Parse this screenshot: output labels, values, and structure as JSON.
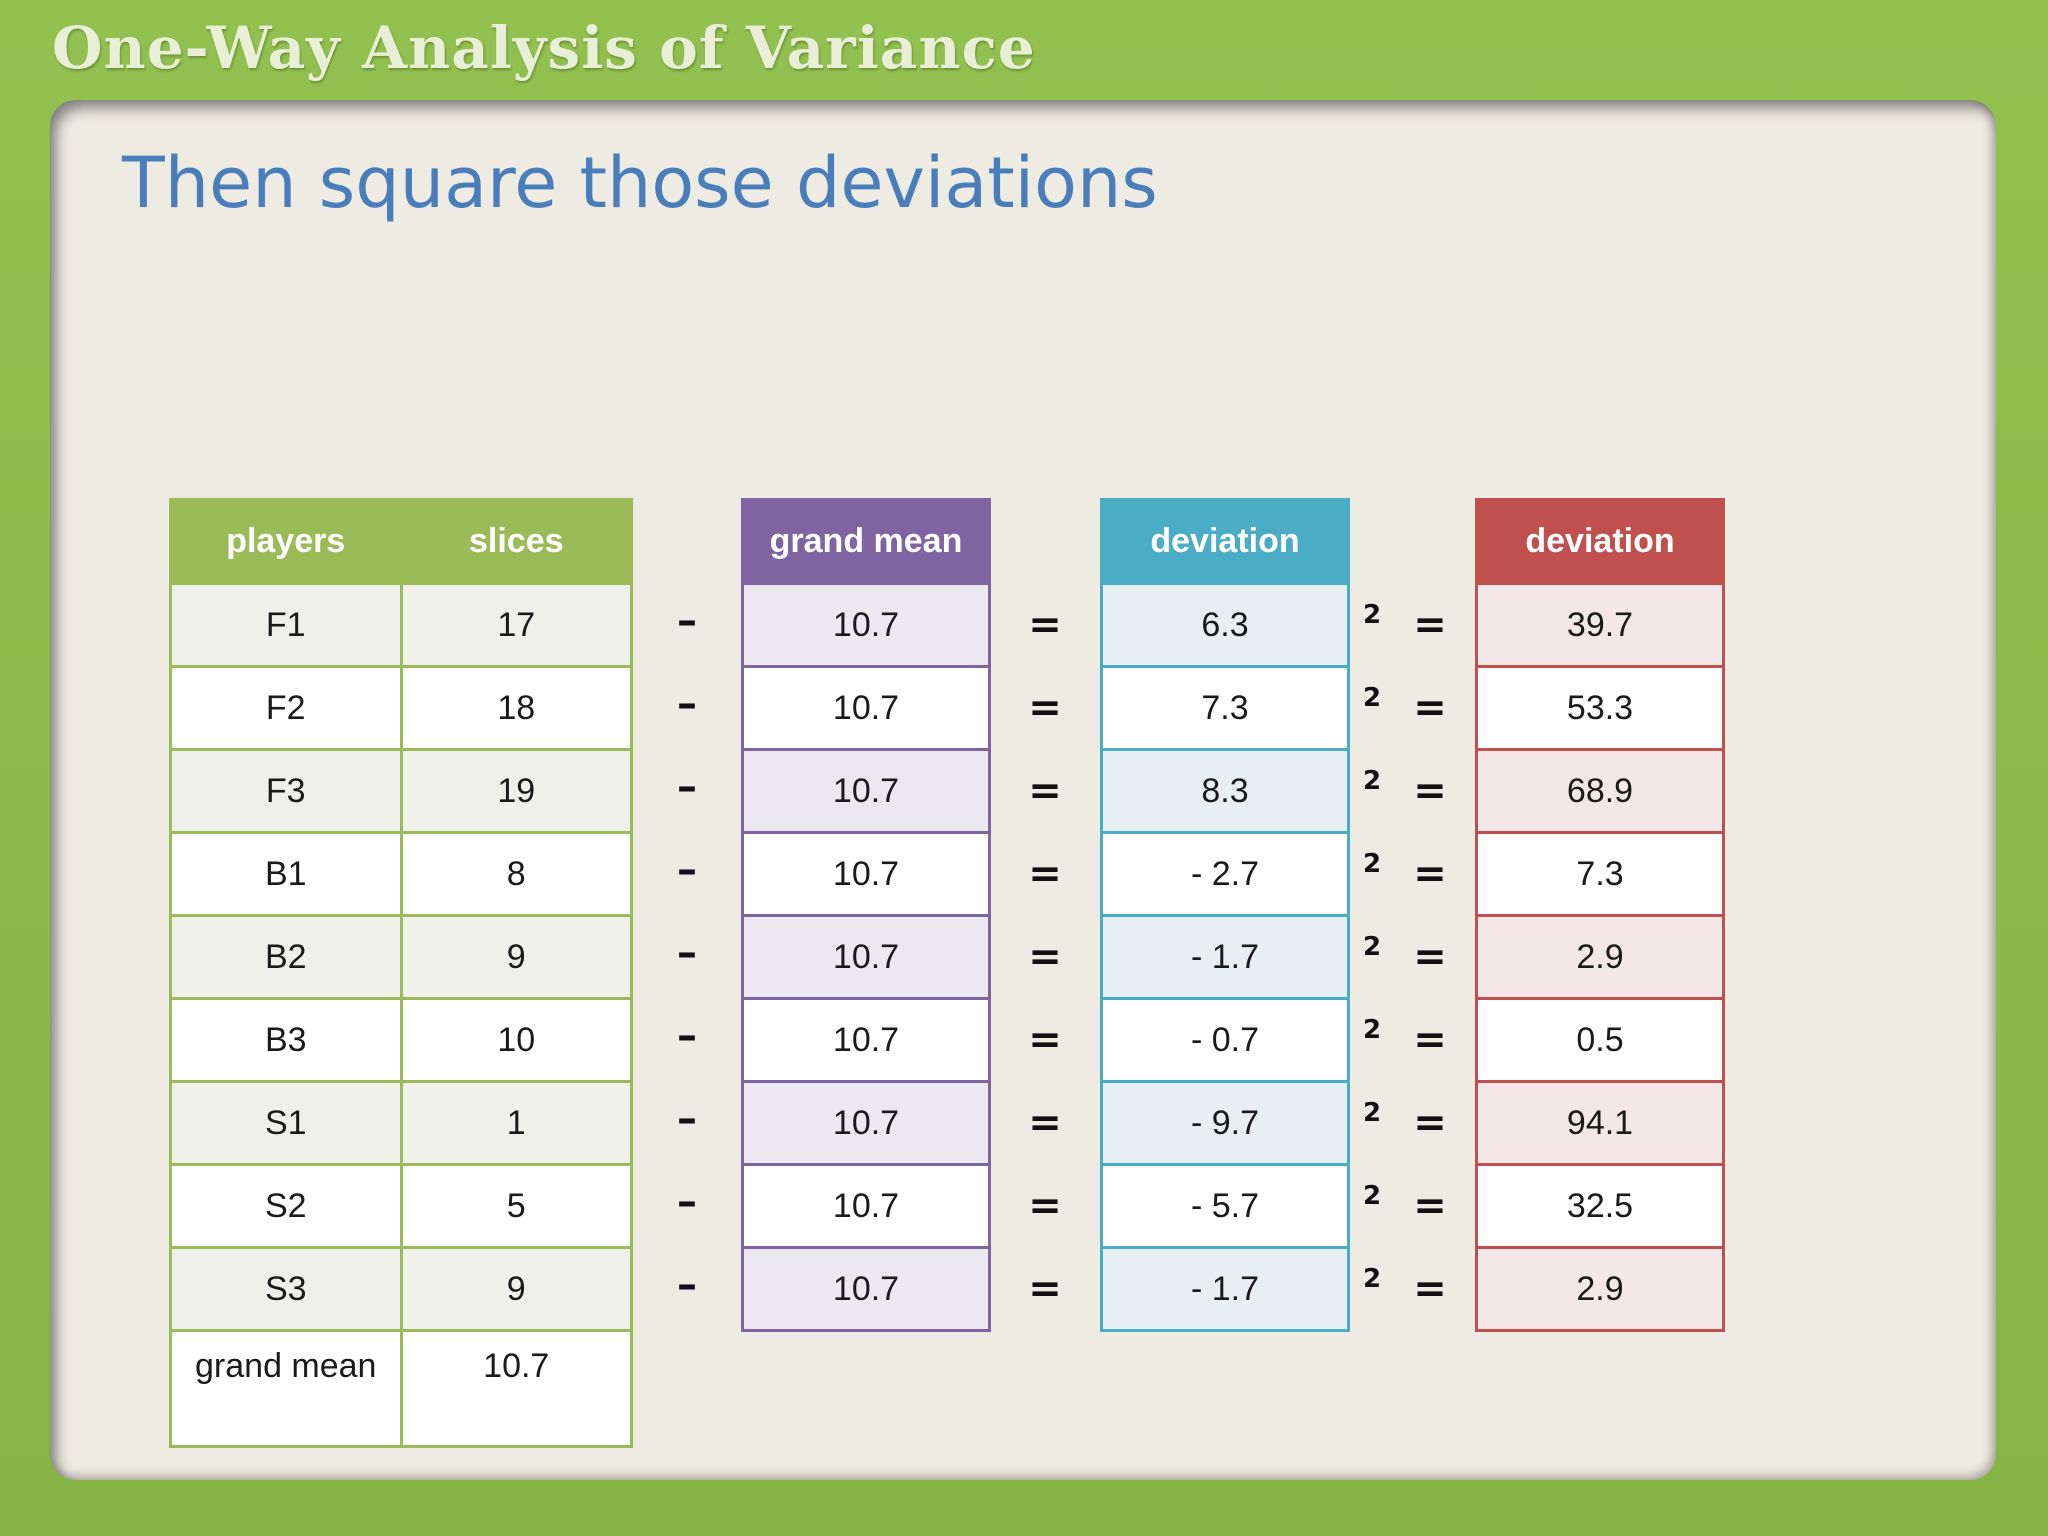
{
  "header": {
    "title": "One-Way Analysis of Variance"
  },
  "slide": {
    "title": "Then square those deviations"
  },
  "players_table": {
    "headers": [
      "players",
      "slices"
    ],
    "rows": [
      [
        "F1",
        "17"
      ],
      [
        "F2",
        "18"
      ],
      [
        "F3",
        "19"
      ],
      [
        "B1",
        "8"
      ],
      [
        "B2",
        "9"
      ],
      [
        "B3",
        "10"
      ],
      [
        "S1",
        "1"
      ],
      [
        "S2",
        "5"
      ],
      [
        "S3",
        "9"
      ]
    ],
    "footer": {
      "label": "grand mean",
      "value": "10.7"
    }
  },
  "grand_mean_table": {
    "header": "grand mean",
    "values": [
      "10.7",
      "10.7",
      "10.7",
      "10.7",
      "10.7",
      "10.7",
      "10.7",
      "10.7",
      "10.7"
    ]
  },
  "deviation_table": {
    "header": "deviation",
    "values": [
      "6.3",
      "7.3",
      "8.3",
      "- 2.7",
      "- 1.7",
      "- 0.7",
      "- 9.7",
      "- 5.7",
      "- 1.7"
    ]
  },
  "squared_table": {
    "header": "deviation",
    "values": [
      "39.7",
      "53.3",
      "68.9",
      "7.3",
      "2.9",
      "0.5",
      "94.1",
      "32.5",
      "2.9"
    ]
  },
  "operators": {
    "minus": "–",
    "equals": "=",
    "exponent": "2"
  },
  "colors": {
    "frame": "#8dbb4c",
    "panel": "#eeebe2",
    "title": "#4a7ebb",
    "players": "#9bbb59",
    "grand_mean": "#8064a2",
    "deviation": "#4bacc6",
    "squared": "#c0504d"
  }
}
